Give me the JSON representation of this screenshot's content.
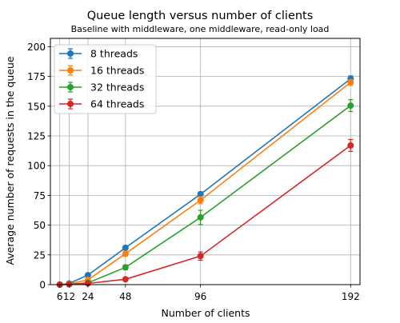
{
  "chart_data": {
    "type": "line",
    "title": "Queue length versus number of clients",
    "subtitle": "Baseline with middleware, one middleware, read-only load",
    "xlabel": "Number of clients",
    "ylabel": "Average number of requests in the queue",
    "x": [
      6,
      12,
      24,
      48,
      96,
      192
    ],
    "x_tick_labels": [
      "6",
      "12",
      "24",
      "48",
      "96",
      "192"
    ],
    "xlim": [
      0,
      198
    ],
    "ylim": [
      0,
      207
    ],
    "y_ticks": [
      0,
      25,
      50,
      75,
      100,
      125,
      150,
      175,
      200
    ],
    "grid": true,
    "legend_position": "upper-left",
    "series": [
      {
        "name": "8 threads",
        "color": "#1f77b4",
        "values": [
          0,
          1,
          8,
          31,
          76,
          173
        ],
        "errors": [
          0.3,
          0.5,
          1.0,
          1.5,
          2.0,
          2.5
        ]
      },
      {
        "name": "16 threads",
        "color": "#ff7f0e",
        "values": [
          0,
          0.6,
          4,
          26,
          71,
          170
        ],
        "errors": [
          0.3,
          0.4,
          1.0,
          2.0,
          3.0,
          2.5
        ]
      },
      {
        "name": "32 threads",
        "color": "#2ca02c",
        "values": [
          0,
          0.3,
          1.5,
          14.5,
          56.5,
          150.5
        ],
        "errors": [
          0.2,
          0.3,
          0.5,
          2.0,
          6.0,
          5.0
        ]
      },
      {
        "name": "64 threads",
        "color": "#d62728",
        "values": [
          0,
          0.2,
          1,
          4.5,
          24,
          117
        ],
        "errors": [
          0.2,
          0.2,
          0.3,
          1.0,
          3.5,
          5.0
        ]
      }
    ]
  }
}
